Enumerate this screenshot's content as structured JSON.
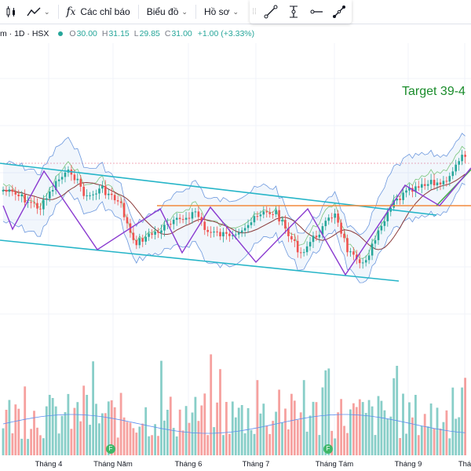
{
  "toolbar": {
    "indicators_label": "Các chỉ báo",
    "chart_label": "Biểu đồ",
    "profile_label": "Hồ sơ"
  },
  "legend": {
    "symbol": "m · 1D · HSX",
    "open": "30.00",
    "high": "31.15",
    "low": "29.85",
    "close": "31.00",
    "change": "+1.00 (+3.33%)"
  },
  "annotation": {
    "target_text": "Target 39-4"
  },
  "colors": {
    "up": "#26a69a",
    "down": "#ef5350",
    "channel": "#26b5c8",
    "resistance": "#f28a3c",
    "bb": "#4a7fd6",
    "zigzag": "#8a3ad0",
    "green_line": "#4caf50",
    "maroon": "#8b3a3a"
  },
  "chart_data": {
    "type": "candlestick",
    "title": "",
    "x_axis": {
      "labels": [
        "Tháng 4",
        "Tháng Năm",
        "Tháng 6",
        "Tháng 7",
        "Tháng Tám",
        "Tháng 9",
        "Thá"
      ]
    },
    "events": [
      "F",
      "F"
    ],
    "last_bar": {
      "open": 30.0,
      "high": 31.15,
      "low": 29.85,
      "close": 31.0,
      "change": 1.0,
      "change_pct": 3.33
    },
    "drawings": [
      "descending channel",
      "horizontal resistance",
      "zigzag",
      "uptrend line",
      "target annotation"
    ],
    "overlays": [
      "Ichimoku cloud",
      "Bollinger Bands",
      "moving averages",
      "volume"
    ]
  }
}
